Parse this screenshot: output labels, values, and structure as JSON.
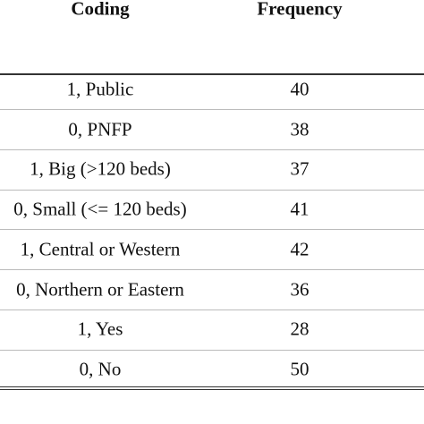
{
  "table": {
    "columns": [
      "Coding",
      "Frequency"
    ],
    "rows": [
      [
        "1, Public",
        40
      ],
      [
        "0, PNFP",
        38
      ],
      [
        "1, Big (>120 beds)",
        37
      ],
      [
        "0, Small (<= 120 beds)",
        41
      ],
      [
        "1, Central or Western",
        42
      ],
      [
        "0, Northern or Eastern",
        36
      ],
      [
        "1, Yes",
        28
      ],
      [
        "0, No",
        50
      ]
    ]
  }
}
